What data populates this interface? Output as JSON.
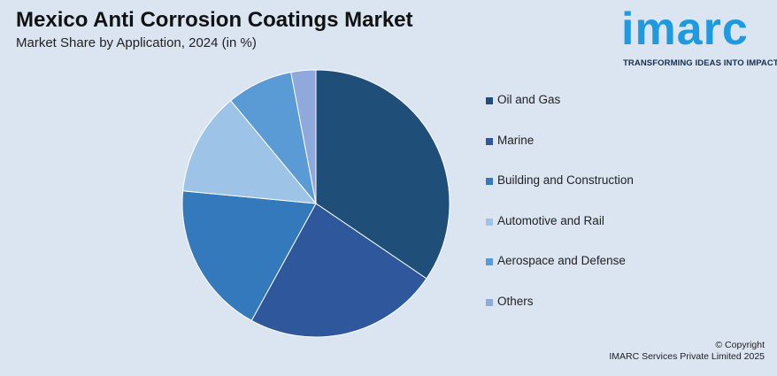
{
  "header": {
    "title": "Mexico Anti Corrosion Coatings Market",
    "subtitle": "Market Share by Application, 2024 (in %)"
  },
  "logo": {
    "word": "imarc",
    "tagline": "TRANSFORMING IDEAS INTO IMPACT",
    "color": "#1e9be0"
  },
  "chart_data": {
    "type": "pie",
    "title": "Mexico Anti Corrosion Coatings Market",
    "subtitle": "Market Share by Application, 2024 (in %)",
    "categories": [
      "Oil and Gas",
      "Marine",
      "Building and Construction",
      "Automotive and Rail",
      "Aerospace and Defense",
      "Others"
    ],
    "values": [
      34.5,
      23.5,
      18.5,
      12.5,
      8,
      3
    ],
    "colors": [
      "#1f4e79",
      "#2e579c",
      "#3379bb",
      "#9dc3e6",
      "#5b9bd5",
      "#8fa9dc"
    ],
    "legend_position": "right"
  },
  "footer": {
    "copyright_line1": "© Copyright",
    "copyright_line2": "IMARC Services Private Limited 2025"
  }
}
